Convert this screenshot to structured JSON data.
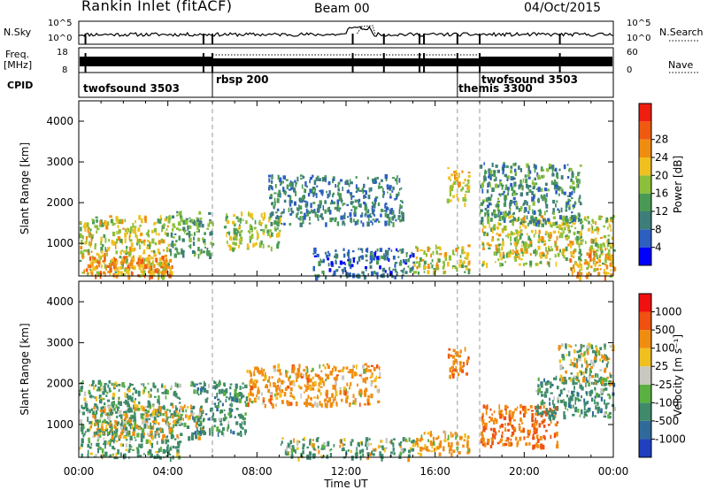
{
  "header": {
    "station": "Rankin Inlet (fitACF)",
    "beam": "Beam 00",
    "date": "04/Oct/2015"
  },
  "top_panels": {
    "nsky_label": "N.Sky",
    "nsearch_label": "N.Search",
    "nsky_ticks": [
      "10^5",
      "10^0"
    ],
    "freq_label": "Freq.",
    "freq_unit": "[MHz]",
    "freq_ticks": [
      "18",
      "8"
    ],
    "nave_label": "Nave",
    "nave_ticks": [
      "60",
      "0"
    ],
    "cpid_label": "CPID",
    "modes": [
      {
        "name": "twofsound 3503",
        "start_h": 0
      },
      {
        "name": "rbsp 200",
        "start_h": 6
      },
      {
        "name": "themis 3300",
        "start_h": 17
      },
      {
        "name": "twofsound 3503",
        "start_h": 18
      }
    ]
  },
  "chart_data": [
    {
      "type": "heatmap",
      "title": "Power",
      "quantity": "Power",
      "unit": "[dB]",
      "xlabel": "Time UT",
      "ylabel": "Slant Range [km]",
      "xlim": [
        0,
        24
      ],
      "ylim": [
        200,
        4500
      ],
      "x_ticks": [
        "00:00",
        "04:00",
        "08:00",
        "12:00",
        "16:00",
        "20:00",
        "00:00"
      ],
      "y_ticks": [
        1000,
        2000,
        3000,
        4000
      ],
      "colorbar": {
        "ticks": [
          4,
          8,
          12,
          16,
          20,
          24,
          28
        ],
        "colors": [
          "#0000ff",
          "#2c5fc0",
          "#3e7d7a",
          "#4a9a55",
          "#8cbf3a",
          "#f0c020",
          "#f08c10",
          "#f05a10",
          "#f01e10"
        ]
      },
      "mode_boundaries_h": [
        6,
        17,
        18
      ],
      "regions": [
        {
          "t0": 0.0,
          "t1": 4.0,
          "r0": 200,
          "r1": 1700,
          "value": 20
        },
        {
          "t0": 0.3,
          "t1": 4.2,
          "r0": 200,
          "r1": 700,
          "value": 26
        },
        {
          "t0": 4.0,
          "t1": 6.0,
          "r0": 700,
          "r1": 1800,
          "value": 14
        },
        {
          "t0": 6.5,
          "t1": 9.0,
          "r0": 900,
          "r1": 1800,
          "value": 18
        },
        {
          "t0": 8.5,
          "t1": 14.5,
          "r0": 1500,
          "r1": 2700,
          "value": 10
        },
        {
          "t0": 10.5,
          "t1": 15.0,
          "r0": 200,
          "r1": 900,
          "value": 8
        },
        {
          "t0": 15.0,
          "t1": 17.5,
          "r0": 300,
          "r1": 1000,
          "value": 20
        },
        {
          "t0": 16.5,
          "t1": 17.5,
          "r0": 2000,
          "r1": 2900,
          "value": 22
        },
        {
          "t0": 18.0,
          "t1": 24.0,
          "r0": 500,
          "r1": 1700,
          "value": 20
        },
        {
          "t0": 18.0,
          "t1": 22.5,
          "r0": 1500,
          "r1": 3000,
          "value": 12
        },
        {
          "t0": 22.0,
          "t1": 24.0,
          "r0": 200,
          "r1": 900,
          "value": 24
        }
      ]
    },
    {
      "type": "heatmap",
      "title": "Velocity",
      "quantity": "Velocity",
      "unit": "[m s⁻¹]",
      "xlabel": "Time UT",
      "ylabel": "Slant Range [km]",
      "xlim": [
        0,
        24
      ],
      "ylim": [
        200,
        4500
      ],
      "x_ticks": [
        "00:00",
        "04:00",
        "08:00",
        "12:00",
        "16:00",
        "20:00",
        "00:00"
      ],
      "y_ticks": [
        1000,
        2000,
        3000,
        4000
      ],
      "colorbar": {
        "ticks": [
          "1000",
          "500",
          "100",
          "25",
          "-25",
          "-100",
          "-500",
          "-1000"
        ],
        "colors": [
          "#2040c0",
          "#2f6a9a",
          "#3e8a6a",
          "#5ab040",
          "#c8c8c0",
          "#f0c020",
          "#f08c10",
          "#f05010",
          "#f01010"
        ]
      },
      "mode_boundaries_h": [
        6,
        17,
        18
      ],
      "regions": [
        {
          "t0": 0.0,
          "t1": 4.5,
          "r0": 200,
          "r1": 2100,
          "value": 200
        },
        {
          "t0": 0.5,
          "t1": 5.5,
          "r0": 700,
          "r1": 1500,
          "value": 0
        },
        {
          "t0": 5.0,
          "t1": 7.5,
          "r0": 800,
          "r1": 2100,
          "value": 300
        },
        {
          "t0": 7.5,
          "t1": 13.5,
          "r0": 1500,
          "r1": 2500,
          "value": -250
        },
        {
          "t0": 9.0,
          "t1": 15.0,
          "r0": 200,
          "r1": 700,
          "value": 150
        },
        {
          "t0": 15.0,
          "t1": 17.5,
          "r0": 300,
          "r1": 900,
          "value": -200
        },
        {
          "t0": 16.5,
          "t1": 17.5,
          "r0": 2200,
          "r1": 2900,
          "value": -400
        },
        {
          "t0": 18.0,
          "t1": 21.5,
          "r0": 500,
          "r1": 1500,
          "value": -500
        },
        {
          "t0": 20.5,
          "t1": 24.0,
          "r0": 1200,
          "r1": 2200,
          "value": 300
        },
        {
          "t0": 21.5,
          "t1": 24.0,
          "r0": 2000,
          "r1": 3000,
          "value": 0
        }
      ]
    }
  ]
}
